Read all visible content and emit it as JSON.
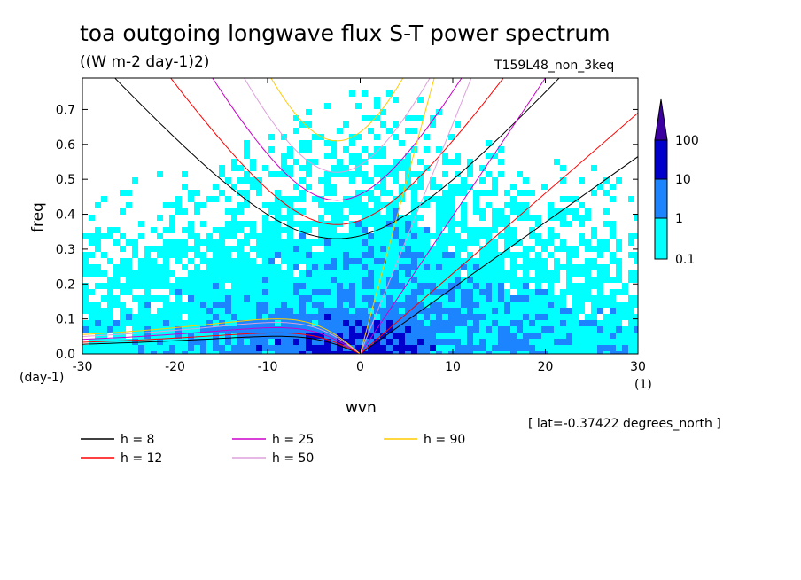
{
  "title": "toa outgoing longwave flux S-T power spectrum",
  "units": "((W m-2 day-1)2)",
  "run_label": "T159L48_non_3keq",
  "lat_note": "[ lat=-0.37422 degrees_north ]",
  "colors": {
    "levels": [
      "#00ffff",
      "#1c84ff",
      "#0000cc",
      "#3c00a0"
    ],
    "curves": {
      "h8": "#000000",
      "h12": "#ff0000",
      "h25": "#cc00cc",
      "h50": "#dda0dd",
      "h90": "#ffcc00"
    }
  },
  "colorbar": {
    "labels": [
      "100",
      "10",
      "1",
      "0.1"
    ]
  },
  "legend": [
    {
      "label": "h =  8",
      "color": "#000000"
    },
    {
      "label": "h = 12",
      "color": "#ff0000"
    },
    {
      "label": "h = 25",
      "color": "#cc00cc"
    },
    {
      "label": "h = 50",
      "color": "#dda0dd"
    },
    {
      "label": "h = 90",
      "color": "#ffcc00"
    }
  ],
  "chart_data": {
    "type": "heatmap",
    "xlabel": "wvn",
    "ylabel": "freq",
    "xunit_label": "(1)",
    "yunit_label": "(day-1)",
    "xlim": [
      -30,
      30
    ],
    "ylim": [
      0,
      0.79
    ],
    "xticks": [
      "-30",
      "-20",
      "-10",
      "0",
      "10",
      "20",
      "30"
    ],
    "yticks": [
      "0.0",
      "0.1",
      "0.2",
      "0.3",
      "0.4",
      "0.5",
      "0.6",
      "0.7"
    ],
    "contour_levels": [
      0.1,
      1,
      10,
      100
    ],
    "dispersion_curves": [
      {
        "name": "h = 8",
        "kelvin_end": [
          30,
          0.565
        ],
        "ig_min": 0.33,
        "rossby_peak": 0.05
      },
      {
        "name": "h = 12",
        "kelvin_end": [
          30,
          0.69
        ],
        "ig_min": 0.37,
        "rossby_peak": 0.06
      },
      {
        "name": "h = 25",
        "kelvin_end": [
          20,
          0.79
        ],
        "ig_min": 0.44,
        "rossby_peak": 0.075
      },
      {
        "name": "h = 50",
        "kelvin_end": [
          12,
          0.79
        ],
        "ig_min": 0.52,
        "rossby_peak": 0.09
      },
      {
        "name": "h = 90",
        "kelvin_end": [
          8,
          0.79
        ],
        "ig_min": 0.61,
        "rossby_peak": 0.1
      }
    ]
  }
}
